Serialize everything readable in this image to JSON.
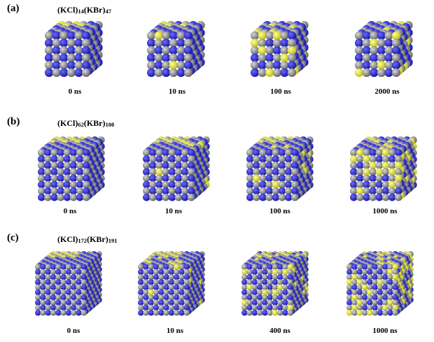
{
  "colors": {
    "K": "#8c8c8c",
    "Br": "#2222cc",
    "Cl": "#eeee22"
  },
  "panels": [
    {
      "label": "(a)",
      "formula": [
        {
          "text": "(KCl)",
          "sub": false
        },
        {
          "text": "14",
          "sub": true
        },
        {
          "text": "(KBr)",
          "sub": false
        },
        {
          "text": "47",
          "sub": true
        }
      ],
      "snapshots": [
        {
          "time": "0 ns",
          "mix": 0.0
        },
        {
          "time": "10 ns",
          "mix": 0.15
        },
        {
          "time": "100 ns",
          "mix": 0.5
        },
        {
          "time": "2000 ns",
          "mix": 0.9
        }
      ]
    },
    {
      "label": "(b)",
      "formula": [
        {
          "text": "(KCl)",
          "sub": false
        },
        {
          "text": "62",
          "sub": true
        },
        {
          "text": "(KBr)",
          "sub": false
        },
        {
          "text": "108",
          "sub": true
        }
      ],
      "snapshots": [
        {
          "time": "0 ns",
          "mix": 0.0
        },
        {
          "time": "10 ns",
          "mix": 0.2
        },
        {
          "time": "100 ns",
          "mix": 0.5
        },
        {
          "time": "1000 ns",
          "mix": 0.9
        }
      ]
    },
    {
      "label": "(c)",
      "formula": [
        {
          "text": "(KCl)",
          "sub": false
        },
        {
          "text": "172",
          "sub": true
        },
        {
          "text": "(KBr)",
          "sub": false
        },
        {
          "text": "191",
          "sub": true
        }
      ],
      "snapshots": [
        {
          "time": "0 ns",
          "mix": 0.0
        },
        {
          "time": "10 ns",
          "mix": 0.25
        },
        {
          "time": "400 ns",
          "mix": 0.6
        },
        {
          "time": "1000 ns",
          "mix": 0.9
        }
      ]
    }
  ]
}
